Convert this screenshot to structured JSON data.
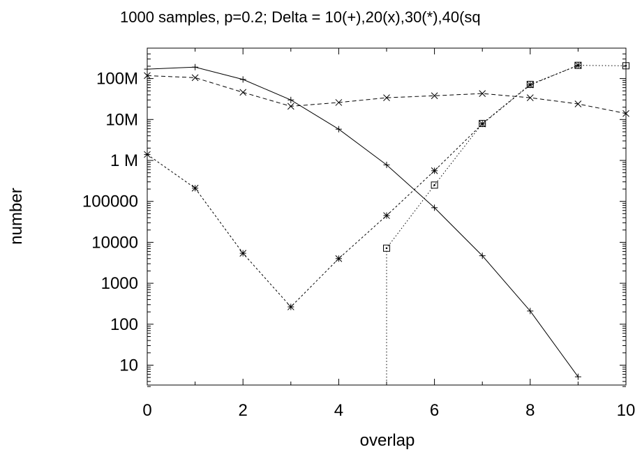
{
  "chart_data": {
    "type": "line",
    "title": "1000 samples, p=0.2; Delta = 10(+),20(x),30(*),40(sq",
    "xlabel": "overlap",
    "ylabel": "number",
    "xlim": [
      0,
      10
    ],
    "ylim": [
      3,
      400000000
    ],
    "yscale": "log",
    "grid": false,
    "legend": "none",
    "x_ticks": [
      0,
      2,
      4,
      6,
      8,
      10
    ],
    "x_tick_labels": [
      "0",
      "2",
      "4",
      "6",
      "8",
      "10"
    ],
    "y_ticks": [
      10,
      100,
      1000,
      10000,
      100000,
      1000000,
      10000000,
      100000000
    ],
    "y_tick_labels": [
      "10",
      "100",
      "1000",
      "10000",
      "100000",
      "1 M",
      "10M",
      "100M"
    ],
    "series": [
      {
        "marker": "plus",
        "dash": "solid",
        "points": [
          [
            0,
            170000000
          ],
          [
            1,
            190000000
          ],
          [
            2,
            95000000
          ],
          [
            3,
            30000000
          ],
          [
            4,
            5800000
          ],
          [
            5,
            780000
          ],
          [
            6,
            70000
          ],
          [
            7,
            4700
          ],
          [
            8,
            210
          ],
          [
            9,
            5.2
          ]
        ]
      },
      {
        "marker": "x",
        "dash": "dashed",
        "points": [
          [
            0,
            118000000
          ],
          [
            1,
            105000000
          ],
          [
            2,
            46000000
          ],
          [
            3,
            21000000
          ],
          [
            4,
            26000000
          ],
          [
            5,
            34000000
          ],
          [
            6,
            38000000
          ],
          [
            7,
            43000000
          ],
          [
            8,
            34000000
          ],
          [
            9,
            24000000
          ],
          [
            10,
            14000000
          ]
        ]
      },
      {
        "marker": "star",
        "dash": "dotted-dense",
        "points": [
          [
            0,
            1400000
          ],
          [
            1,
            210000
          ],
          [
            2,
            5400
          ],
          [
            3,
            265
          ],
          [
            4,
            4000
          ],
          [
            5,
            45000
          ],
          [
            6,
            560000
          ],
          [
            7,
            7800000
          ],
          [
            8,
            70000000
          ],
          [
            9,
            210000000
          ]
        ]
      },
      {
        "marker": "square",
        "dash": "dotted",
        "points": [
          [
            5,
            0.5
          ],
          [
            5,
            7200
          ],
          [
            6,
            250000
          ],
          [
            7,
            8000000
          ],
          [
            8,
            72000000
          ],
          [
            9,
            210000000
          ],
          [
            10,
            205000000
          ]
        ]
      }
    ]
  }
}
